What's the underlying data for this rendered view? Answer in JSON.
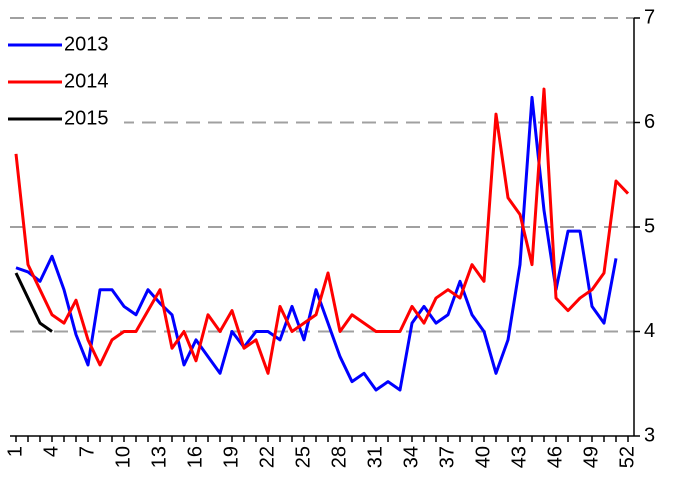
{
  "chart_data": {
    "type": "line",
    "x": [
      1,
      2,
      3,
      4,
      5,
      6,
      7,
      8,
      9,
      10,
      11,
      12,
      13,
      14,
      15,
      16,
      17,
      18,
      19,
      20,
      21,
      22,
      23,
      24,
      25,
      26,
      27,
      28,
      29,
      30,
      31,
      32,
      33,
      34,
      35,
      36,
      37,
      38,
      39,
      40,
      41,
      42,
      43,
      44,
      45,
      46,
      47,
      48,
      49,
      50,
      51,
      52
    ],
    "xlim": [
      0.5,
      52.5
    ],
    "xticks": [
      1,
      4,
      7,
      10,
      13,
      16,
      19,
      22,
      25,
      28,
      31,
      34,
      37,
      40,
      43,
      46,
      49,
      52
    ],
    "ylim": [
      3,
      7
    ],
    "yticks": [
      3,
      4,
      5,
      6,
      7
    ],
    "grid": true,
    "legend": "top-left",
    "series": [
      {
        "name": "2013",
        "color": "#0000ff",
        "values": [
          4.61,
          4.57,
          4.48,
          4.72,
          4.4,
          3.97,
          3.68,
          4.4,
          4.4,
          4.24,
          4.16,
          4.4,
          4.27,
          4.16,
          3.68,
          3.92,
          3.76,
          3.6,
          4.0,
          3.85,
          4.0,
          4.0,
          3.92,
          4.24,
          3.92,
          4.4,
          4.08,
          3.76,
          3.52,
          3.6,
          3.44,
          3.52,
          3.44,
          4.08,
          4.24,
          4.08,
          4.16,
          4.48,
          4.16,
          4.0,
          3.6,
          3.92,
          4.64,
          6.24,
          5.16,
          4.4,
          4.96,
          4.96,
          4.24,
          4.08,
          4.7,
          null
        ]
      },
      {
        "name": "2014",
        "color": "#ff0000",
        "values": [
          5.7,
          4.64,
          4.4,
          4.16,
          4.08,
          4.3,
          3.92,
          3.68,
          3.92,
          4.0,
          4.0,
          4.2,
          4.4,
          3.84,
          4.0,
          3.72,
          4.16,
          4.0,
          4.2,
          3.84,
          3.92,
          3.6,
          4.24,
          4.0,
          4.08,
          4.16,
          4.56,
          4.0,
          4.16,
          4.08,
          4.0,
          4.0,
          4.0,
          4.24,
          4.08,
          4.32,
          4.4,
          4.32,
          4.64,
          4.48,
          6.08,
          5.28,
          5.12,
          4.64,
          6.32,
          4.32,
          4.2,
          4.32,
          4.4,
          4.56,
          5.44,
          5.32
        ]
      },
      {
        "name": "2015",
        "color": "#000000",
        "values": [
          4.56,
          4.32,
          4.08,
          4.0,
          null,
          null,
          null,
          null,
          null,
          null,
          null,
          null,
          null,
          null,
          null,
          null,
          null,
          null,
          null,
          null,
          null,
          null,
          null,
          null,
          null,
          null,
          null,
          null,
          null,
          null,
          null,
          null,
          null,
          null,
          null,
          null,
          null,
          null,
          null,
          null,
          null,
          null,
          null,
          null,
          null,
          null,
          null,
          null,
          null,
          null,
          null,
          null
        ]
      }
    ]
  }
}
